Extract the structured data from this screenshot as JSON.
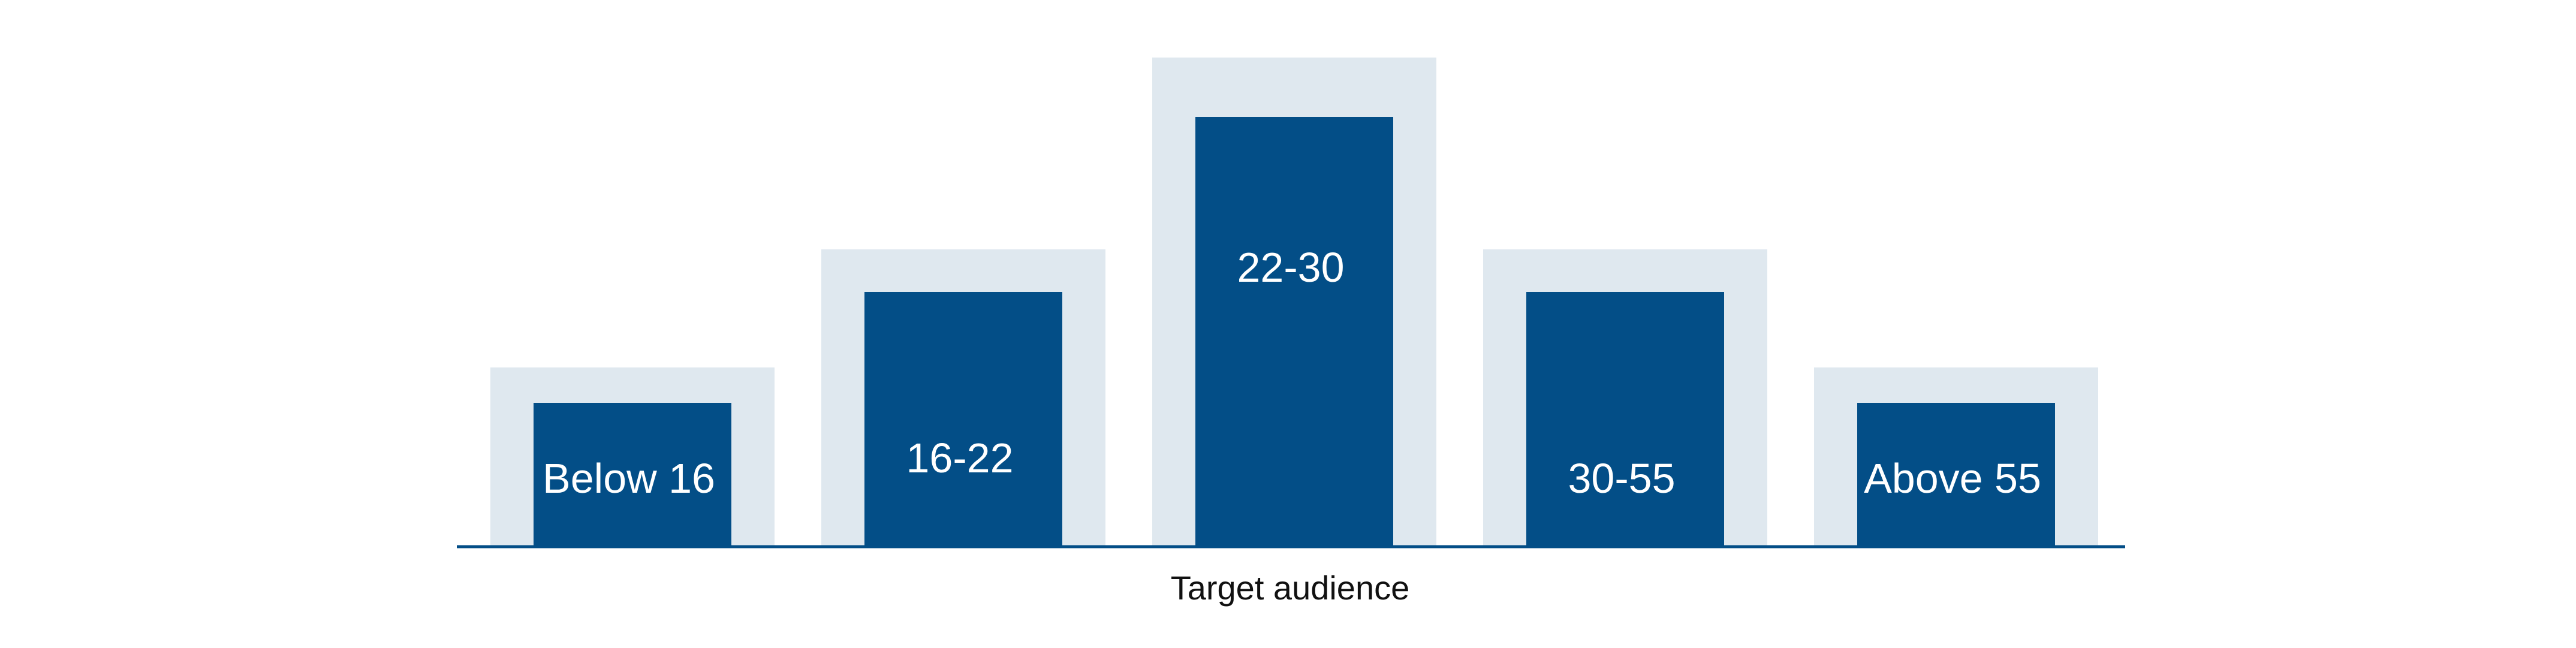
{
  "chart_data": {
    "type": "bar",
    "categories": [
      "Below 16",
      "16-22",
      "22-30",
      "30-55",
      "Above 55"
    ],
    "values": [
      1,
      2,
      3,
      2,
      1
    ],
    "xlabel": "Target audience",
    "ylabel": "",
    "grid": false,
    "legend": "none",
    "colors": {
      "bar": "#034e87",
      "backdrop": "#dfe8ef",
      "axis": "#034e87",
      "label": "#ffffff"
    }
  }
}
